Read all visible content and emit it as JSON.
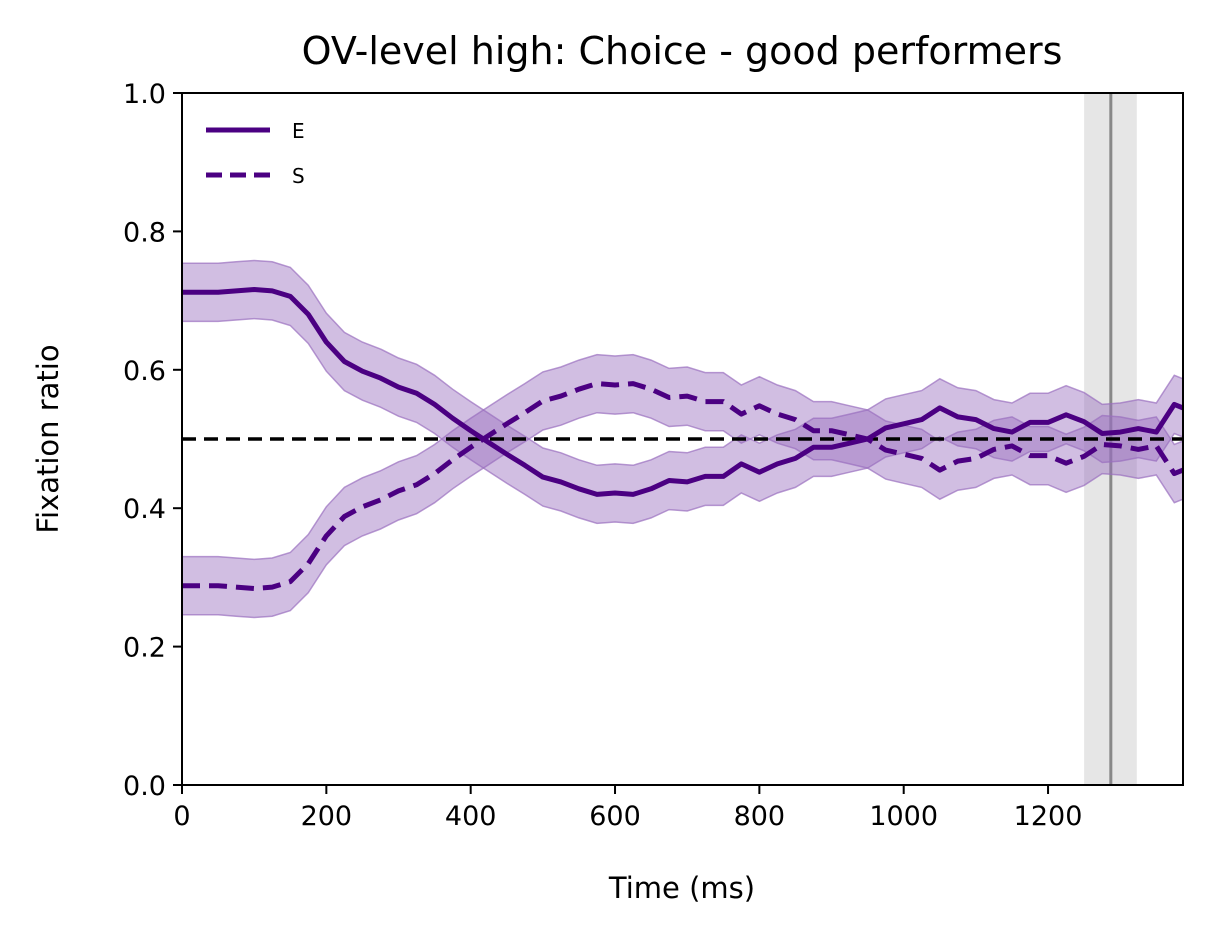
{
  "chart_data": {
    "type": "line",
    "title": "OV-level high: Choice - good performers",
    "xlabel": "Time (ms)",
    "ylabel": "Fixation ratio",
    "xlim": [
      0,
      1387
    ],
    "ylim": [
      0.0,
      1.0
    ],
    "xticks": [
      0,
      200,
      400,
      600,
      800,
      1000,
      1200
    ],
    "yticks": [
      "0.0",
      "0.2",
      "0.4",
      "0.6",
      "0.8",
      "1.0"
    ],
    "grid": false,
    "legend_position": "top-left",
    "colors": {
      "series": "#4b0082",
      "band": "#9a6fbf",
      "reference": "#000000",
      "marker_line": "#888888",
      "marker_band": "#d9d9d9"
    },
    "reference_line": {
      "y": 0.5,
      "style": "dashed"
    },
    "vertical_marker": {
      "x": 1287,
      "band": [
        1250,
        1323
      ]
    },
    "x": [
      0,
      25,
      50,
      75,
      100,
      125,
      150,
      175,
      200,
      225,
      250,
      275,
      300,
      325,
      350,
      375,
      400,
      425,
      450,
      475,
      500,
      525,
      550,
      575,
      600,
      625,
      650,
      675,
      700,
      725,
      750,
      775,
      800,
      825,
      850,
      875,
      900,
      925,
      950,
      975,
      1000,
      1025,
      1050,
      1075,
      1100,
      1125,
      1150,
      1175,
      1200,
      1225,
      1250,
      1275,
      1300,
      1325,
      1350,
      1375,
      1387
    ],
    "series": [
      {
        "name": "E",
        "style": "solid",
        "values": [
          0.712,
          0.712,
          0.712,
          0.714,
          0.716,
          0.714,
          0.706,
          0.68,
          0.64,
          0.612,
          0.598,
          0.588,
          0.575,
          0.566,
          0.55,
          0.53,
          0.512,
          0.495,
          0.478,
          0.462,
          0.445,
          0.438,
          0.428,
          0.42,
          0.422,
          0.42,
          0.428,
          0.44,
          0.438,
          0.446,
          0.446,
          0.464,
          0.452,
          0.464,
          0.472,
          0.488,
          0.488,
          0.494,
          0.5,
          0.516,
          0.522,
          0.528,
          0.545,
          0.532,
          0.528,
          0.515,
          0.51,
          0.524,
          0.524,
          0.535,
          0.525,
          0.508,
          0.51,
          0.515,
          0.51,
          0.55,
          0.545
        ],
        "band_halfwidth": 0.042
      },
      {
        "name": "S",
        "style": "dashed",
        "values": [
          0.288,
          0.288,
          0.288,
          0.286,
          0.284,
          0.286,
          0.294,
          0.32,
          0.36,
          0.388,
          0.402,
          0.412,
          0.425,
          0.434,
          0.45,
          0.47,
          0.488,
          0.505,
          0.522,
          0.538,
          0.555,
          0.562,
          0.572,
          0.58,
          0.578,
          0.58,
          0.572,
          0.56,
          0.562,
          0.554,
          0.554,
          0.536,
          0.548,
          0.536,
          0.528,
          0.512,
          0.512,
          0.506,
          0.5,
          0.484,
          0.478,
          0.472,
          0.455,
          0.468,
          0.472,
          0.485,
          0.49,
          0.476,
          0.476,
          0.465,
          0.475,
          0.492,
          0.49,
          0.485,
          0.49,
          0.45,
          0.455
        ],
        "band_halfwidth": 0.042
      }
    ]
  }
}
